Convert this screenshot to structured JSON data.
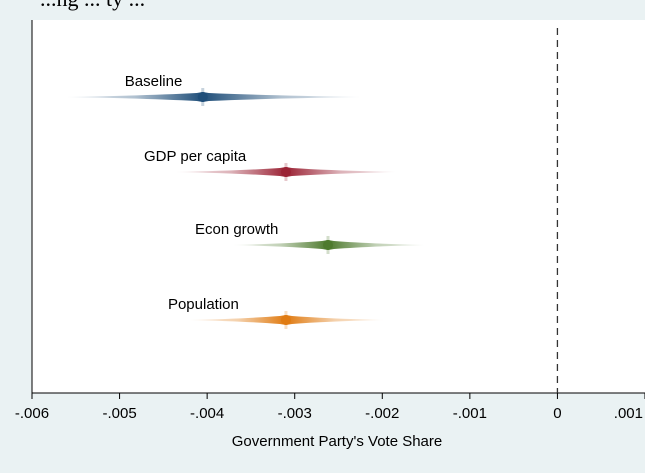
{
  "title_partial": "...ng ... ty ...",
  "chart_data": {
    "type": "scatter",
    "xlabel": "Government Party's Vote Share",
    "ylabel": "",
    "xlim": [
      -0.006,
      0.001
    ],
    "x_ticks": [
      -0.006,
      -0.005,
      -0.004,
      -0.003,
      -0.002,
      -0.001,
      0,
      0.001
    ],
    "x_tick_labels": [
      "-.006",
      "-.005",
      "-.004",
      "-.003",
      "-.002",
      "-.001",
      "0",
      ".001"
    ],
    "reference_line": {
      "x": 0,
      "style": "dashed"
    },
    "grid": false,
    "series": [
      {
        "name": "Baseline",
        "estimate": -0.00405,
        "ci_low": -0.0056,
        "ci_high": -0.00225,
        "color": "#1f4e79"
      },
      {
        "name": "GDP per capita",
        "estimate": -0.0031,
        "ci_low": -0.00435,
        "ci_high": -0.00185,
        "color": "#9b2335"
      },
      {
        "name": "Econ growth",
        "estimate": -0.00262,
        "ci_low": -0.0037,
        "ci_high": -0.00152,
        "color": "#4e7a2e"
      },
      {
        "name": "Population",
        "estimate": -0.0031,
        "ci_low": -0.0042,
        "ci_high": -0.00198,
        "color": "#e07b12"
      }
    ]
  }
}
